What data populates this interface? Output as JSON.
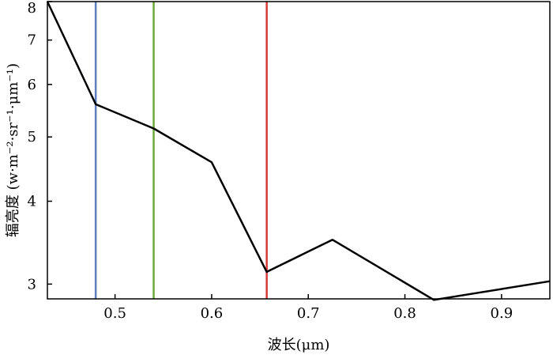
{
  "chart_data": {
    "type": "line",
    "title": "",
    "xlabel": "波长(μm)",
    "ylabel": "辐亮度 (w·m⁻²·sr⁻¹·μm⁻¹)",
    "x_ticks": [
      "0.5",
      "0.6",
      "0.7",
      "0.8",
      "0.9"
    ],
    "y_ticks": [
      "3",
      "4",
      "5",
      "6",
      "7",
      "8"
    ],
    "xlim": [
      0.43,
      0.95
    ],
    "y_scale": "log",
    "ylim": [
      2.85,
      8.0
    ],
    "grid": false,
    "series": [
      {
        "color": "#000000",
        "x": [
          0.43,
          0.48,
          0.54,
          0.6,
          0.657,
          0.725,
          0.83,
          0.95
        ],
        "y": [
          8.0,
          5.6,
          5.15,
          4.58,
          3.13,
          3.5,
          2.84,
          3.03
        ]
      }
    ],
    "vertical_lines": [
      {
        "x": 0.48,
        "color": "#5b7fbf"
      },
      {
        "x": 0.54,
        "color": "#6aaa3a"
      },
      {
        "x": 0.657,
        "color": "#d63a3a"
      }
    ]
  }
}
